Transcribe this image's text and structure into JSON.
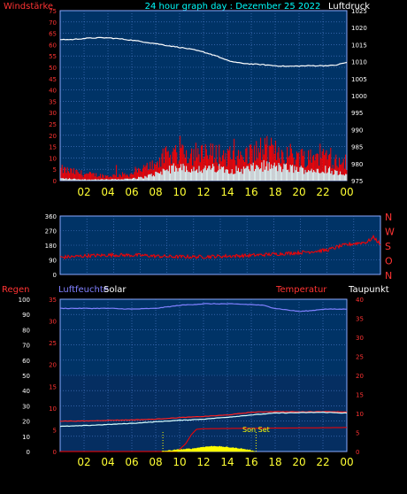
{
  "header": {
    "left_label": "Windstärke",
    "title": "24 hour graph day : Dezember 25 2022",
    "right_label": "Luftdruck"
  },
  "bottom_header": {
    "regen": "Regen",
    "luftfeuchte": "Luftfeuchte",
    "solar": "Solar",
    "temperatur": "Temperatur",
    "taupunkt": "Taupunkt"
  },
  "colors": {
    "plot_bg": "#003366",
    "plot_bg_lower": "#0a2a5c",
    "grid": "#4f7fd0",
    "axis_left": "#ff3333",
    "axis_right": "#ffffff",
    "axis_bottom": "#ffff33",
    "wind_gust": "#ff0000",
    "wind_speed": "#d8ffff",
    "pressure": "#ffffff",
    "direction": "#ff0000",
    "humidity": "#8080ff",
    "temperature": "#ff2020",
    "dewpoint": "#d8ffff",
    "rain": "#ff0000",
    "solar": "#ffff00"
  },
  "chart_data": [
    {
      "type": "line",
      "name": "wind-pressure",
      "left_axis": {
        "label": "Windstärke",
        "ylim": [
          0,
          75
        ],
        "ticks": [
          0,
          5,
          10,
          15,
          20,
          25,
          30,
          35,
          40,
          45,
          50,
          55,
          60,
          65,
          70,
          75
        ]
      },
      "right_axis": {
        "label": "Luftdruck",
        "ylim": [
          975,
          1025
        ],
        "ticks": [
          975,
          980,
          985,
          990,
          995,
          1000,
          1005,
          1010,
          1015,
          1020,
          1025
        ]
      },
      "x_ticks": [
        "02",
        "04",
        "06",
        "08",
        "10",
        "12",
        "14",
        "16",
        "18",
        "20",
        "22",
        "00"
      ],
      "pressure": {
        "x": [
          0,
          1,
          2,
          3,
          4,
          5,
          6,
          7,
          8,
          9,
          10,
          11,
          12,
          13,
          14,
          15,
          16,
          17,
          18,
          19,
          20,
          21,
          22,
          23,
          24
        ],
        "y": [
          1016.5,
          1016.5,
          1016.8,
          1017,
          1017,
          1016.7,
          1016.3,
          1015.8,
          1015.3,
          1014.7,
          1014.2,
          1013.6,
          1012.8,
          1011.8,
          1010.3,
          1009.6,
          1009.3,
          1009.1,
          1008.8,
          1008.6,
          1008.7,
          1008.8,
          1008.8,
          1008.9,
          1009.8
        ]
      },
      "wind_gust_base": {
        "x": [
          0,
          2,
          4,
          6,
          7,
          8,
          9,
          10,
          11,
          12,
          13,
          14,
          15,
          16,
          17,
          18,
          19,
          20,
          21,
          22,
          23,
          24
        ],
        "y": [
          5,
          3,
          2,
          3,
          5,
          8,
          11,
          13,
          12,
          11,
          12,
          11,
          10,
          12,
          14,
          13,
          12,
          11,
          10,
          12,
          9,
          6
        ]
      },
      "wind_speed_base": {
        "x": [
          0,
          2,
          4,
          6,
          7,
          8,
          9,
          10,
          11,
          12,
          13,
          14,
          15,
          16,
          17,
          18,
          19,
          20,
          21,
          22,
          23,
          24
        ],
        "y": [
          1,
          0.5,
          0.5,
          0.8,
          1.5,
          3,
          5,
          6,
          5.5,
          5,
          5.5,
          5,
          4.5,
          5.5,
          6.5,
          6,
          5.5,
          5,
          4.5,
          5.5,
          4,
          2
        ]
      }
    },
    {
      "type": "line",
      "name": "wind-direction",
      "left_axis": {
        "ylim": [
          0,
          360
        ],
        "ticks": [
          0,
          90,
          180,
          270,
          360
        ]
      },
      "right_labels": [
        "N",
        "W",
        "S",
        "O",
        "N"
      ],
      "direction": {
        "x": [
          0,
          2,
          4,
          6,
          8,
          10,
          12,
          14,
          16,
          18,
          20,
          21,
          22,
          23,
          23.5,
          24
        ],
        "y": [
          105,
          115,
          120,
          118,
          110,
          108,
          112,
          116,
          125,
          135,
          150,
          175,
          190,
          200,
          230,
          185
        ]
      }
    },
    {
      "type": "line",
      "name": "humidity-temperature-rain-solar",
      "left_axis": {
        "label": "Luftfeuchte",
        "ylim": [
          0,
          100
        ],
        "ticks": [
          0,
          10,
          20,
          30,
          40,
          50,
          60,
          70,
          80,
          90,
          100
        ]
      },
      "rain_axis": {
        "label": "Regen",
        "ylim": [
          0,
          35
        ],
        "ticks": [
          0,
          5,
          10,
          15,
          20,
          25,
          30,
          35
        ]
      },
      "right_axis": {
        "label": "Temperatur",
        "ylim": [
          0,
          40
        ],
        "ticks": [
          0,
          5,
          10,
          15,
          20,
          25,
          30,
          35,
          40
        ]
      },
      "annotation": "Son Set",
      "humidity": {
        "x": [
          0,
          2,
          4,
          6,
          8,
          9,
          10,
          11,
          12,
          14,
          16,
          17,
          18,
          19,
          20,
          21,
          22,
          23,
          24
        ],
        "y": [
          94,
          94,
          94,
          93.5,
          94,
          95,
          96,
          96.5,
          97,
          97,
          96.5,
          96,
          94,
          93,
          92,
          92.5,
          93.5,
          93.5,
          93.5
        ]
      },
      "temperature": {
        "x": [
          0,
          2,
          4,
          6,
          8,
          10,
          12,
          14,
          16,
          18,
          20,
          22,
          24
        ],
        "y": [
          8,
          8,
          8.2,
          8.3,
          8.5,
          8.9,
          9.2,
          9.6,
          10.3,
          10.5,
          10.4,
          10.5,
          10.4
        ]
      },
      "dewpoint": {
        "x": [
          0,
          2,
          4,
          6,
          8,
          10,
          12,
          14,
          16,
          18,
          20,
          22,
          24
        ],
        "y": [
          6.6,
          6.8,
          7.1,
          7.4,
          7.8,
          8.2,
          8.5,
          9,
          9.6,
          10.1,
          10.2,
          10.3,
          10.1
        ]
      },
      "rain": {
        "x": [
          0,
          9.8,
          10.5,
          11.0,
          11.4,
          12,
          24
        ],
        "y": [
          0,
          0,
          2,
          4.5,
          5.8,
          6,
          6.3
        ]
      },
      "solar": {
        "x": [
          8.5,
          9,
          10,
          11,
          12,
          13,
          14,
          15,
          16,
          16.3
        ],
        "y": [
          0,
          0.2,
          0.5,
          0.7,
          1.2,
          1.4,
          1.1,
          0.8,
          0.3,
          0
        ]
      }
    }
  ]
}
